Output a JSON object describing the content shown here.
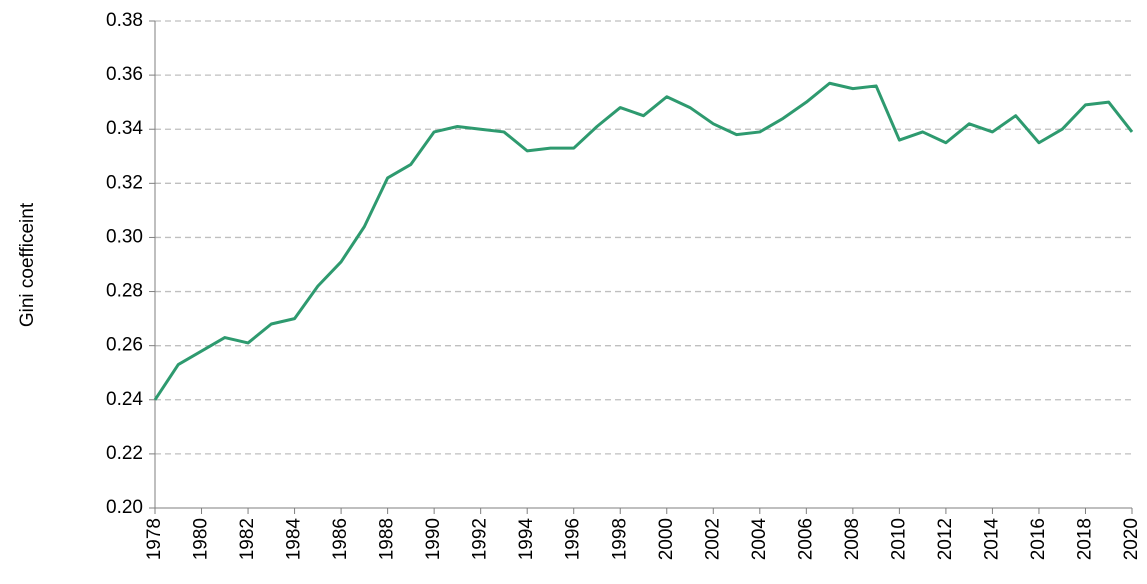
{
  "chart_data": {
    "type": "line",
    "y_label": "Gini coefficeint",
    "x": [
      1978,
      1979,
      1980,
      1981,
      1982,
      1983,
      1984,
      1985,
      1986,
      1987,
      1988,
      1989,
      1990,
      1991,
      1992,
      1993,
      1994,
      1995,
      1996,
      1997,
      1998,
      1999,
      2000,
      2001,
      2002,
      2003,
      2004,
      2005,
      2006,
      2007,
      2008,
      2009,
      2010,
      2011,
      2012,
      2013,
      2014,
      2015,
      2016,
      2017,
      2018,
      2019,
      2020
    ],
    "series": [
      {
        "color": "#2e9a6f",
        "values": [
          0.24,
          0.253,
          0.258,
          0.263,
          0.261,
          0.268,
          0.27,
          0.282,
          0.291,
          0.304,
          0.322,
          0.327,
          0.339,
          0.341,
          0.34,
          0.339,
          0.332,
          0.333,
          0.333,
          0.341,
          0.348,
          0.345,
          0.352,
          0.348,
          0.342,
          0.338,
          0.339,
          0.344,
          0.35,
          0.357,
          0.355,
          0.356,
          0.336,
          0.339,
          0.335,
          0.342,
          0.339,
          0.345,
          0.335,
          0.34,
          0.349,
          0.35,
          0.339
        ]
      }
    ],
    "xlim": [
      1978,
      2020
    ],
    "xticks": [
      1978,
      1980,
      1982,
      1984,
      1986,
      1988,
      1990,
      1992,
      1994,
      1996,
      1998,
      2000,
      2002,
      2004,
      2006,
      2008,
      2010,
      2012,
      2014,
      2016,
      2018,
      2020
    ],
    "ylim": [
      0.2,
      0.38
    ],
    "yticks": [
      {
        "value": 0.2,
        "label": "0.20"
      },
      0.22,
      0.24,
      0.26,
      0.28,
      {
        "value": 0.3,
        "label": "0.30"
      },
      0.32,
      0.34,
      0.36,
      0.38
    ],
    "grid": true
  }
}
